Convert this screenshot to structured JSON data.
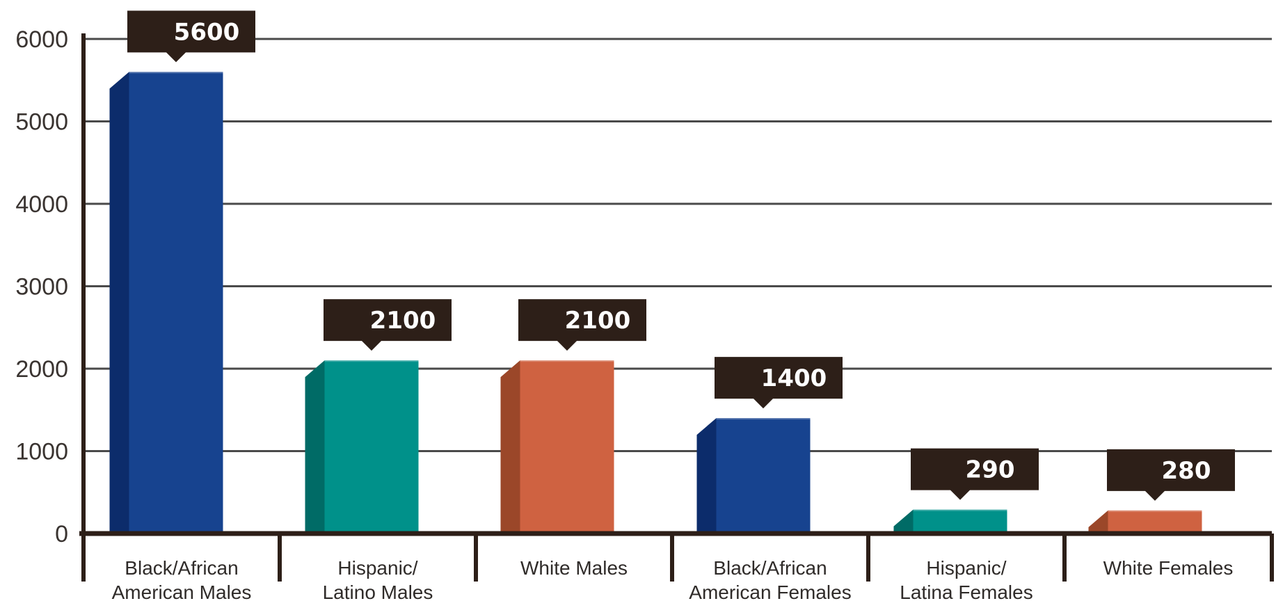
{
  "chart_data": {
    "type": "bar",
    "categories": [
      [
        "Black/African",
        "American Males"
      ],
      [
        "Hispanic/",
        "Latino Males"
      ],
      [
        "White Males"
      ],
      [
        "Black/African",
        "American Females"
      ],
      [
        "Hispanic/",
        "Latina Females"
      ],
      [
        "White Females"
      ]
    ],
    "values": [
      5600,
      2100,
      2100,
      1400,
      290,
      280
    ],
    "data_labels": [
      "5600",
      "2100",
      "2100",
      "1400",
      "290",
      "280"
    ],
    "y_ticks": [
      "0",
      "1000",
      "2000",
      "3000",
      "4000",
      "5000",
      "6000"
    ],
    "ylim": [
      0,
      6000
    ],
    "grid": true,
    "legend": "none",
    "colors": {
      "series": [
        "#17438f",
        "#00918a",
        "#cf6241",
        "#17438f",
        "#00918a",
        "#cf6241"
      ],
      "series_dark": [
        "#0c2c6b",
        "#006b66",
        "#9b4729",
        "#0c2c6b",
        "#006b66",
        "#9b4729"
      ],
      "axis": "#2d1f18",
      "grid": "#4a4a4a",
      "callout": "#2d1f18",
      "callout_text": "#ffffff"
    }
  }
}
